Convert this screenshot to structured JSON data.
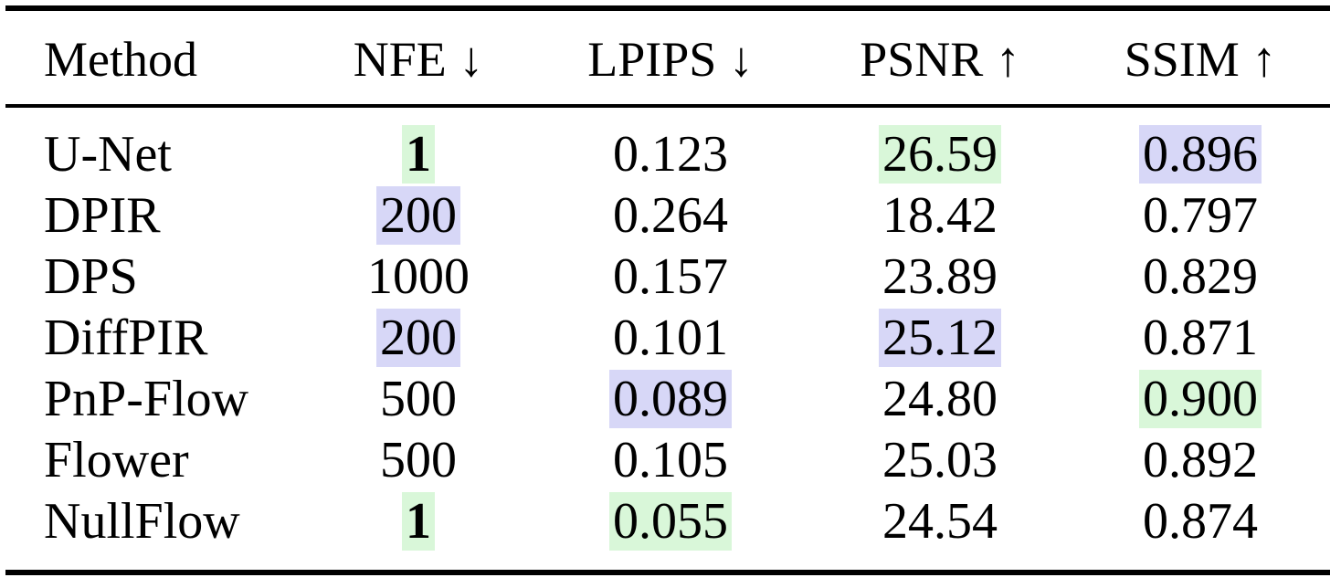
{
  "table": {
    "headers": {
      "method": "Method",
      "nfe": "NFE ↓",
      "lpips": "LPIPS ↓",
      "psnr": "PSNR ↑",
      "ssim": "SSIM ↑"
    },
    "rows": [
      {
        "method": "U-Net",
        "nfe": "1",
        "lpips": "0.123",
        "psnr": "26.59",
        "ssim": "0.896"
      },
      {
        "method": "DPIR",
        "nfe": "200",
        "lpips": "0.264",
        "psnr": "18.42",
        "ssim": "0.797"
      },
      {
        "method": "DPS",
        "nfe": "1000",
        "lpips": "0.157",
        "psnr": "23.89",
        "ssim": "0.829"
      },
      {
        "method": "DiffPIR",
        "nfe": "200",
        "lpips": "0.101",
        "psnr": "25.12",
        "ssim": "0.871"
      },
      {
        "method": "PnP-Flow",
        "nfe": "500",
        "lpips": "0.089",
        "psnr": "24.80",
        "ssim": "0.900"
      },
      {
        "method": "Flower",
        "nfe": "500",
        "lpips": "0.105",
        "psnr": "25.03",
        "ssim": "0.892"
      },
      {
        "method": "NullFlow",
        "nfe": "1",
        "lpips": "0.055",
        "psnr": "24.54",
        "ssim": "0.874"
      }
    ],
    "highlight_colors": {
      "best": "#d9f7d9",
      "second": "#d7d7f7"
    }
  }
}
